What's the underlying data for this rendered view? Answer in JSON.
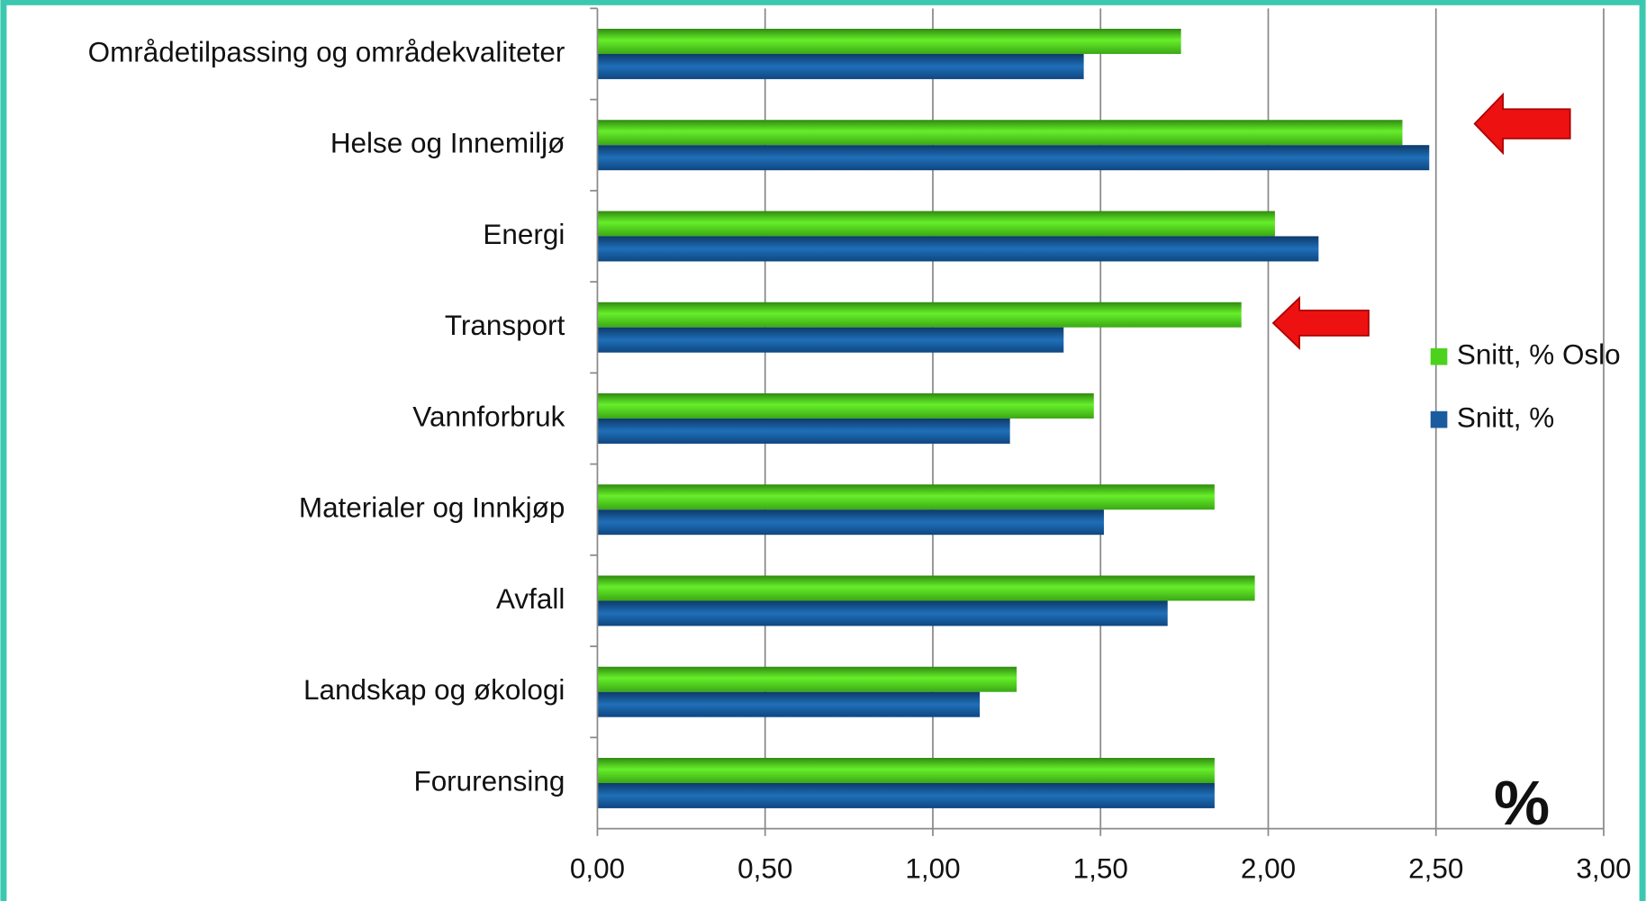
{
  "chart_data": {
    "type": "bar",
    "orientation": "horizontal",
    "categories": [
      "Områdetilpassing og områdekvaliteter",
      "Helse og Innemiljø",
      "Energi",
      "Transport",
      "Vannforbruk",
      "Materialer og Innkjøp",
      "Avfall",
      "Landskap og økologi",
      "Forurensing"
    ],
    "series": [
      {
        "name": "Snitt, % Oslo",
        "color": "#4cd21c",
        "values": [
          1.74,
          2.4,
          2.02,
          1.92,
          1.48,
          1.84,
          1.96,
          1.25,
          1.84
        ]
      },
      {
        "name": "Snitt, %",
        "color": "#1a5c9e",
        "values": [
          1.45,
          2.48,
          2.15,
          1.39,
          1.23,
          1.51,
          1.7,
          1.14,
          1.84
        ]
      }
    ],
    "xlim": [
      0,
      3
    ],
    "xticks": [
      {
        "value": 0,
        "label": "0,00"
      },
      {
        "value": 0.5,
        "label": "0,50"
      },
      {
        "value": 1,
        "label": "1,00"
      },
      {
        "value": 1.5,
        "label": "1,50"
      },
      {
        "value": 2,
        "label": "2,00"
      },
      {
        "value": 2.5,
        "label": "2,50"
      },
      {
        "value": 3,
        "label": "3,00"
      }
    ],
    "grid": true,
    "legend": "right",
    "annotation": "%"
  }
}
